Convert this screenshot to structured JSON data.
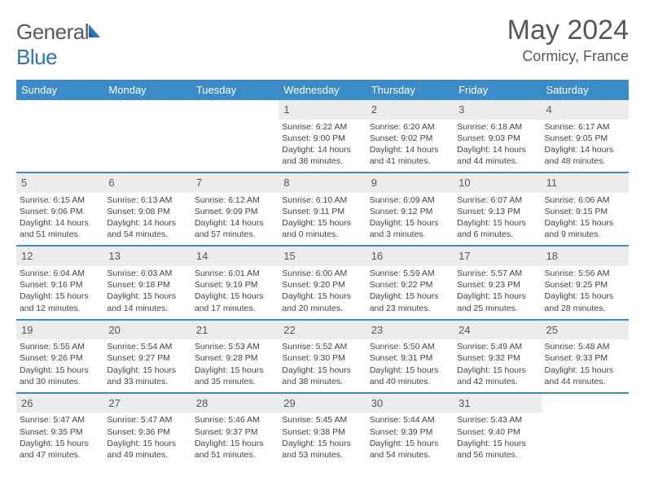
{
  "brand": {
    "part1": "General",
    "part2": "Blue"
  },
  "title": "May 2024",
  "location": "Cormicy, France",
  "colors": {
    "header_bg": "#3B8BC6",
    "header_text": "#ffffff",
    "daynum_bg": "#ECECEC",
    "divider": "#3B8BC6",
    "body_text": "#444444",
    "title_text": "#575757"
  },
  "weekdays": [
    "Sunday",
    "Monday",
    "Tuesday",
    "Wednesday",
    "Thursday",
    "Friday",
    "Saturday"
  ],
  "weeks": [
    {
      "days": [
        {
          "n": "",
          "sunrise": "",
          "sunset": "",
          "daylight": ""
        },
        {
          "n": "",
          "sunrise": "",
          "sunset": "",
          "daylight": ""
        },
        {
          "n": "",
          "sunrise": "",
          "sunset": "",
          "daylight": ""
        },
        {
          "n": "1",
          "sunrise": "Sunrise: 6:22 AM",
          "sunset": "Sunset: 9:00 PM",
          "daylight": "Daylight: 14 hours and 38 minutes."
        },
        {
          "n": "2",
          "sunrise": "Sunrise: 6:20 AM",
          "sunset": "Sunset: 9:02 PM",
          "daylight": "Daylight: 14 hours and 41 minutes."
        },
        {
          "n": "3",
          "sunrise": "Sunrise: 6:18 AM",
          "sunset": "Sunset: 9:03 PM",
          "daylight": "Daylight: 14 hours and 44 minutes."
        },
        {
          "n": "4",
          "sunrise": "Sunrise: 6:17 AM",
          "sunset": "Sunset: 9:05 PM",
          "daylight": "Daylight: 14 hours and 48 minutes."
        }
      ]
    },
    {
      "days": [
        {
          "n": "5",
          "sunrise": "Sunrise: 6:15 AM",
          "sunset": "Sunset: 9:06 PM",
          "daylight": "Daylight: 14 hours and 51 minutes."
        },
        {
          "n": "6",
          "sunrise": "Sunrise: 6:13 AM",
          "sunset": "Sunset: 9:08 PM",
          "daylight": "Daylight: 14 hours and 54 minutes."
        },
        {
          "n": "7",
          "sunrise": "Sunrise: 6:12 AM",
          "sunset": "Sunset: 9:09 PM",
          "daylight": "Daylight: 14 hours and 57 minutes."
        },
        {
          "n": "8",
          "sunrise": "Sunrise: 6:10 AM",
          "sunset": "Sunset: 9:11 PM",
          "daylight": "Daylight: 15 hours and 0 minutes."
        },
        {
          "n": "9",
          "sunrise": "Sunrise: 6:09 AM",
          "sunset": "Sunset: 9:12 PM",
          "daylight": "Daylight: 15 hours and 3 minutes."
        },
        {
          "n": "10",
          "sunrise": "Sunrise: 6:07 AM",
          "sunset": "Sunset: 9:13 PM",
          "daylight": "Daylight: 15 hours and 6 minutes."
        },
        {
          "n": "11",
          "sunrise": "Sunrise: 6:06 AM",
          "sunset": "Sunset: 9:15 PM",
          "daylight": "Daylight: 15 hours and 9 minutes."
        }
      ]
    },
    {
      "days": [
        {
          "n": "12",
          "sunrise": "Sunrise: 6:04 AM",
          "sunset": "Sunset: 9:16 PM",
          "daylight": "Daylight: 15 hours and 12 minutes."
        },
        {
          "n": "13",
          "sunrise": "Sunrise: 6:03 AM",
          "sunset": "Sunset: 9:18 PM",
          "daylight": "Daylight: 15 hours and 14 minutes."
        },
        {
          "n": "14",
          "sunrise": "Sunrise: 6:01 AM",
          "sunset": "Sunset: 9:19 PM",
          "daylight": "Daylight: 15 hours and 17 minutes."
        },
        {
          "n": "15",
          "sunrise": "Sunrise: 6:00 AM",
          "sunset": "Sunset: 9:20 PM",
          "daylight": "Daylight: 15 hours and 20 minutes."
        },
        {
          "n": "16",
          "sunrise": "Sunrise: 5:59 AM",
          "sunset": "Sunset: 9:22 PM",
          "daylight": "Daylight: 15 hours and 23 minutes."
        },
        {
          "n": "17",
          "sunrise": "Sunrise: 5:57 AM",
          "sunset": "Sunset: 9:23 PM",
          "daylight": "Daylight: 15 hours and 25 minutes."
        },
        {
          "n": "18",
          "sunrise": "Sunrise: 5:56 AM",
          "sunset": "Sunset: 9:25 PM",
          "daylight": "Daylight: 15 hours and 28 minutes."
        }
      ]
    },
    {
      "days": [
        {
          "n": "19",
          "sunrise": "Sunrise: 5:55 AM",
          "sunset": "Sunset: 9:26 PM",
          "daylight": "Daylight: 15 hours and 30 minutes."
        },
        {
          "n": "20",
          "sunrise": "Sunrise: 5:54 AM",
          "sunset": "Sunset: 9:27 PM",
          "daylight": "Daylight: 15 hours and 33 minutes."
        },
        {
          "n": "21",
          "sunrise": "Sunrise: 5:53 AM",
          "sunset": "Sunset: 9:28 PM",
          "daylight": "Daylight: 15 hours and 35 minutes."
        },
        {
          "n": "22",
          "sunrise": "Sunrise: 5:52 AM",
          "sunset": "Sunset: 9:30 PM",
          "daylight": "Daylight: 15 hours and 38 minutes."
        },
        {
          "n": "23",
          "sunrise": "Sunrise: 5:50 AM",
          "sunset": "Sunset: 9:31 PM",
          "daylight": "Daylight: 15 hours and 40 minutes."
        },
        {
          "n": "24",
          "sunrise": "Sunrise: 5:49 AM",
          "sunset": "Sunset: 9:32 PM",
          "daylight": "Daylight: 15 hours and 42 minutes."
        },
        {
          "n": "25",
          "sunrise": "Sunrise: 5:48 AM",
          "sunset": "Sunset: 9:33 PM",
          "daylight": "Daylight: 15 hours and 44 minutes."
        }
      ]
    },
    {
      "days": [
        {
          "n": "26",
          "sunrise": "Sunrise: 5:47 AM",
          "sunset": "Sunset: 9:35 PM",
          "daylight": "Daylight: 15 hours and 47 minutes."
        },
        {
          "n": "27",
          "sunrise": "Sunrise: 5:47 AM",
          "sunset": "Sunset: 9:36 PM",
          "daylight": "Daylight: 15 hours and 49 minutes."
        },
        {
          "n": "28",
          "sunrise": "Sunrise: 5:46 AM",
          "sunset": "Sunset: 9:37 PM",
          "daylight": "Daylight: 15 hours and 51 minutes."
        },
        {
          "n": "29",
          "sunrise": "Sunrise: 5:45 AM",
          "sunset": "Sunset: 9:38 PM",
          "daylight": "Daylight: 15 hours and 53 minutes."
        },
        {
          "n": "30",
          "sunrise": "Sunrise: 5:44 AM",
          "sunset": "Sunset: 9:39 PM",
          "daylight": "Daylight: 15 hours and 54 minutes."
        },
        {
          "n": "31",
          "sunrise": "Sunrise: 5:43 AM",
          "sunset": "Sunset: 9:40 PM",
          "daylight": "Daylight: 15 hours and 56 minutes."
        },
        {
          "n": "",
          "sunrise": "",
          "sunset": "",
          "daylight": ""
        }
      ]
    }
  ]
}
